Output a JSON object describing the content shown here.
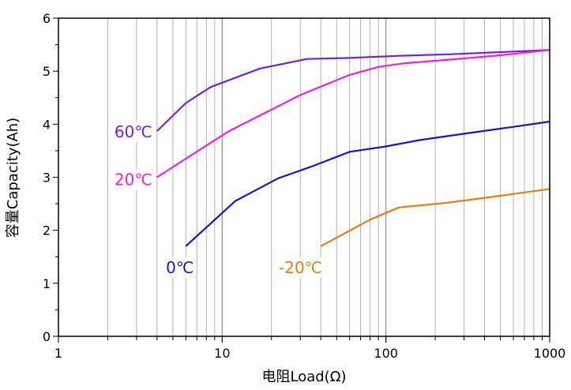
{
  "chart_data": {
    "type": "line",
    "xscale": "log",
    "xlabel": "电阻Load(Ω)",
    "ylabel": "容量Capacity(Ah)",
    "xlim": [
      1,
      1000
    ],
    "ylim": [
      0,
      6
    ],
    "x_ticks": [
      "1",
      "10",
      "100",
      "1000"
    ],
    "y_ticks": [
      "0",
      "1",
      "2",
      "3",
      "4",
      "5",
      "6"
    ],
    "grid": true,
    "series": [
      {
        "name": "60℃",
        "color": "#7b1fd6",
        "x": [
          4,
          6,
          8.5,
          17,
          33,
          60,
          120,
          250,
          500,
          1000
        ],
        "y": [
          3.87,
          4.4,
          4.7,
          5.05,
          5.23,
          5.25,
          5.29,
          5.32,
          5.36,
          5.4
        ]
      },
      {
        "name": "20℃",
        "color": "#ee1ee8",
        "x": [
          4,
          11,
          30,
          60,
          90,
          130,
          250,
          500,
          1000
        ],
        "y": [
          3.0,
          3.87,
          4.55,
          4.93,
          5.08,
          5.15,
          5.22,
          5.3,
          5.4
        ]
      },
      {
        "name": "0℃",
        "color": "#1a12d4",
        "x": [
          6,
          12,
          22,
          35,
          60,
          100,
          160,
          300,
          600,
          1000
        ],
        "y": [
          1.7,
          2.55,
          2.98,
          3.2,
          3.48,
          3.58,
          3.7,
          3.82,
          3.95,
          4.05
        ]
      },
      {
        "name": "-20℃",
        "color": "#f07a12",
        "x": [
          40,
          80,
          120,
          240,
          500,
          1000
        ],
        "y": [
          1.7,
          2.2,
          2.43,
          2.52,
          2.65,
          2.78
        ]
      }
    ]
  }
}
